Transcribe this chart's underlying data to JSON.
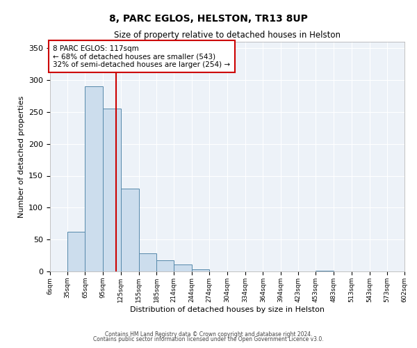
{
  "title": "8, PARC EGLOS, HELSTON, TR13 8UP",
  "subtitle": "Size of property relative to detached houses in Helston",
  "xlabel": "Distribution of detached houses by size in Helston",
  "ylabel": "Number of detached properties",
  "bin_edges": [
    6,
    35,
    65,
    95,
    125,
    155,
    185,
    214,
    244,
    274,
    304,
    334,
    364,
    394,
    423,
    453,
    483,
    513,
    543,
    573,
    602
  ],
  "bar_heights": [
    0,
    62,
    290,
    255,
    130,
    28,
    18,
    11,
    3,
    0,
    0,
    0,
    0,
    0,
    0,
    1,
    0,
    0,
    0,
    0
  ],
  "bar_color": "#ccdded",
  "bar_edgecolor": "#5588aa",
  "vline_x": 117,
  "vline_color": "#cc0000",
  "ylim": [
    0,
    360
  ],
  "yticks": [
    0,
    50,
    100,
    150,
    200,
    250,
    300,
    350
  ],
  "annotation_text": "8 PARC EGLOS: 117sqm\n← 68% of detached houses are smaller (543)\n32% of semi-detached houses are larger (254) →",
  "annotation_box_color": "#ffffff",
  "annotation_box_edgecolor": "#cc0000",
  "footer_line1": "Contains HM Land Registry data © Crown copyright and database right 2024.",
  "footer_line2": "Contains public sector information licensed under the Open Government Licence v3.0.",
  "background_color": "#edf2f8",
  "tick_labels": [
    "6sqm",
    "35sqm",
    "65sqm",
    "95sqm",
    "125sqm",
    "155sqm",
    "185sqm",
    "214sqm",
    "244sqm",
    "274sqm",
    "304sqm",
    "334sqm",
    "364sqm",
    "394sqm",
    "423sqm",
    "453sqm",
    "483sqm",
    "513sqm",
    "543sqm",
    "573sqm",
    "602sqm"
  ]
}
